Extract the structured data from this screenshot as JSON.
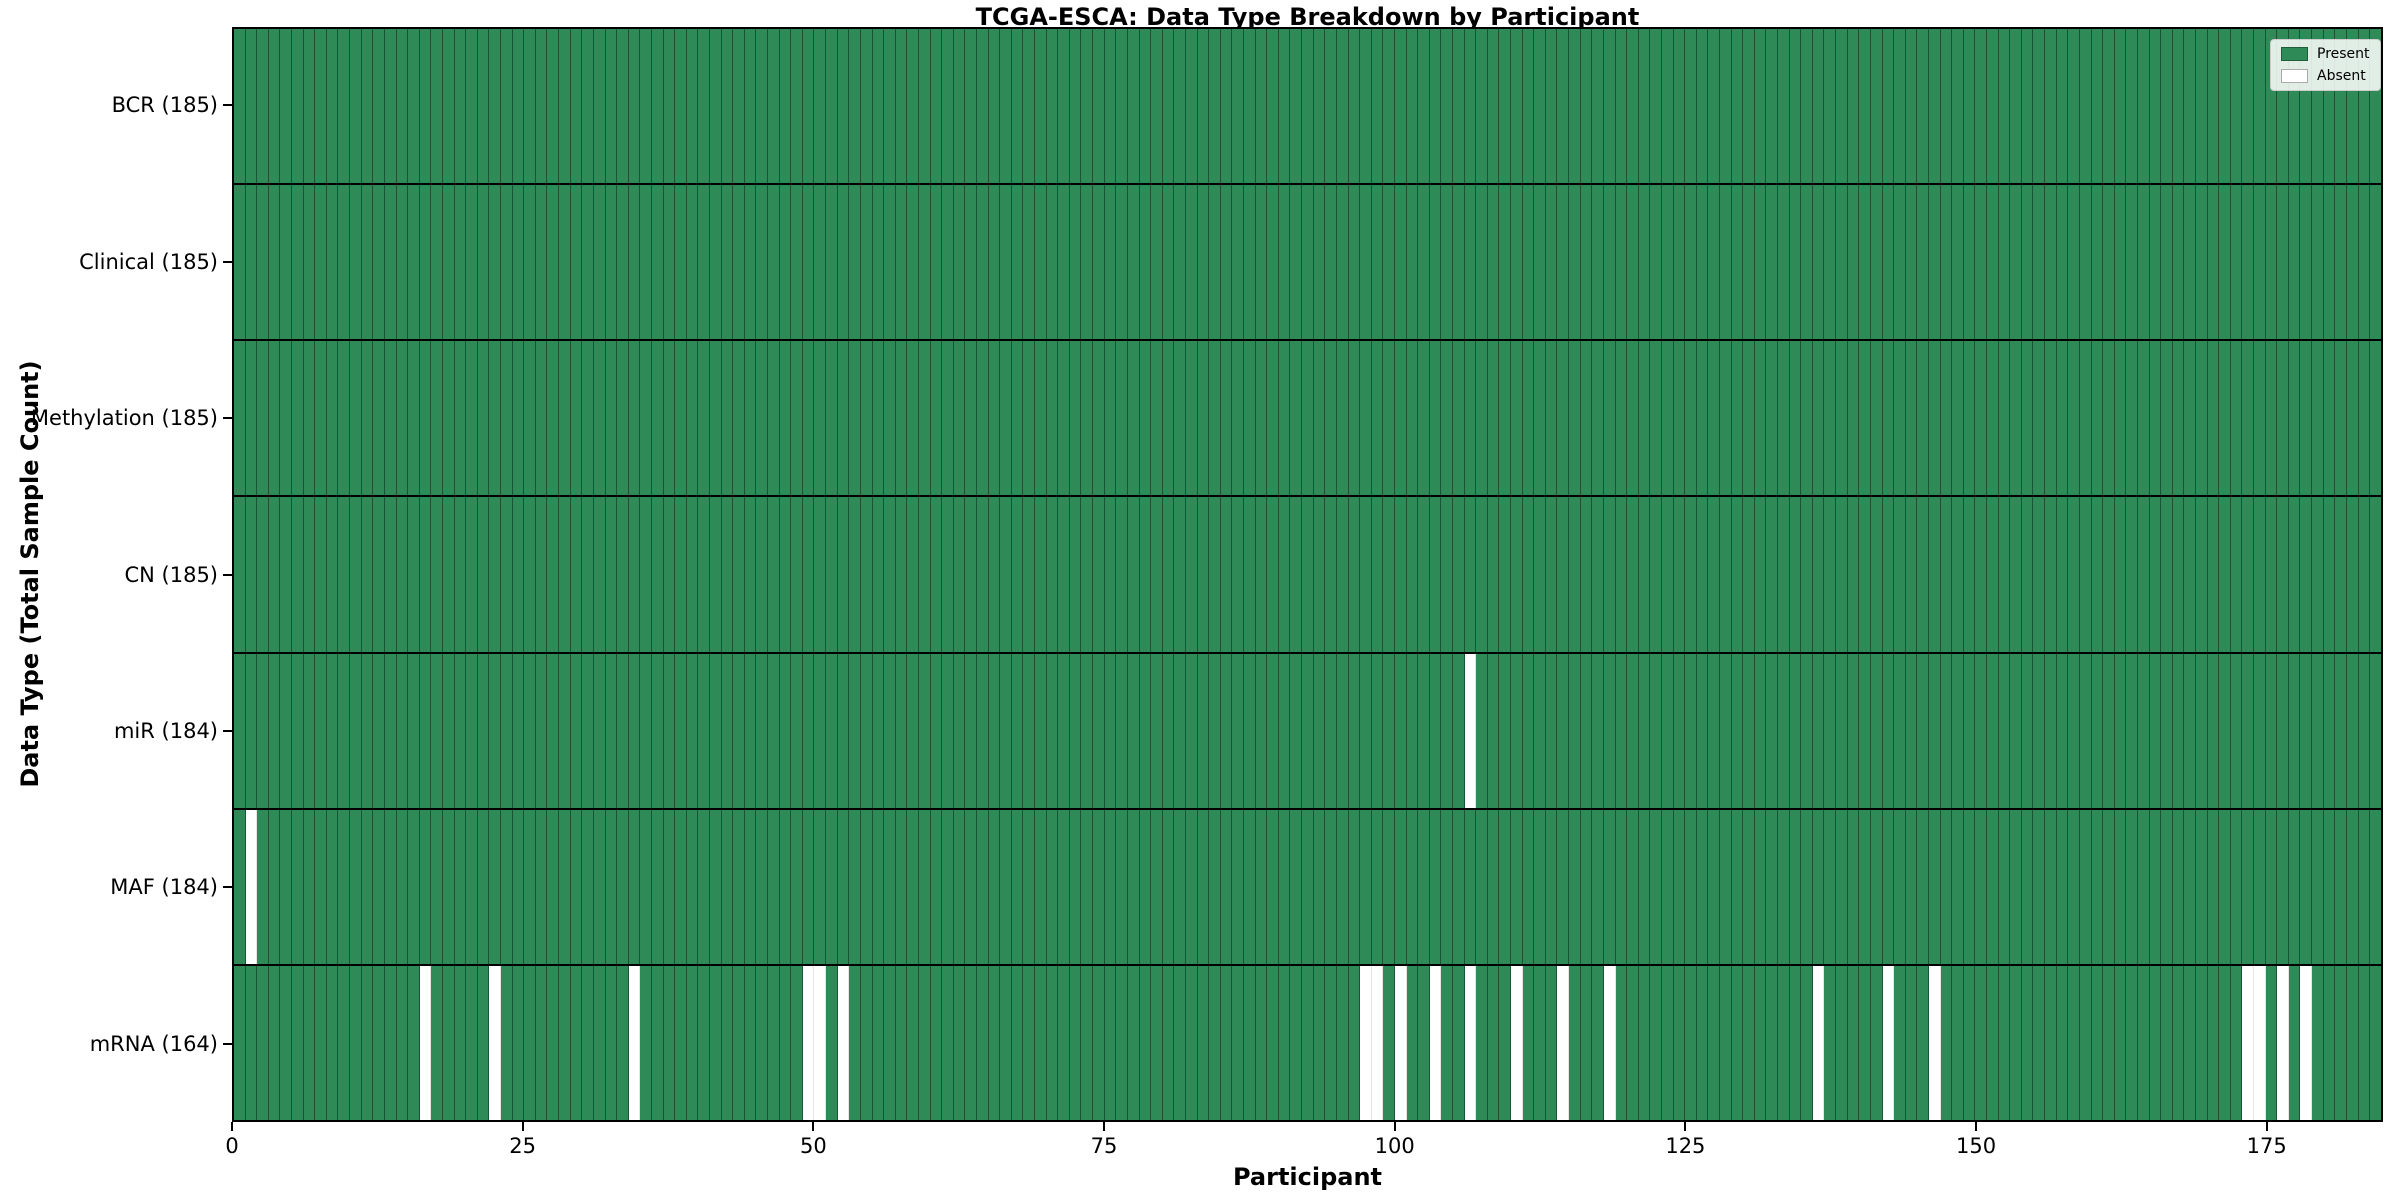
{
  "chart_data": {
    "type": "heatmap",
    "title": "TCGA-ESCA: Data Type Breakdown by Participant",
    "xlabel": "Participant",
    "ylabel": "Data Type (Total Sample Count)",
    "n_participants": 185,
    "x_ticks": [
      0,
      25,
      50,
      75,
      100,
      125,
      150,
      175
    ],
    "colors": {
      "present": "#2e8b57",
      "absent": "#ffffff",
      "cell_edge": "rgba(0,0,0,0.40)",
      "row_divider": "#000000"
    },
    "legend": {
      "position": "upper right",
      "items": [
        {
          "label": "Present",
          "color": "#2e8b57"
        },
        {
          "label": "Absent",
          "color": "#ffffff"
        }
      ]
    },
    "rows": [
      {
        "label": "BCR (185)",
        "count": 185,
        "absent": []
      },
      {
        "label": "Clinical (185)",
        "count": 185,
        "absent": []
      },
      {
        "label": "Methylation (185)",
        "count": 185,
        "absent": []
      },
      {
        "label": "CN (185)",
        "count": 185,
        "absent": []
      },
      {
        "label": "miR (184)",
        "count": 184,
        "absent": [
          106
        ]
      },
      {
        "label": "MAF (184)",
        "count": 184,
        "absent": [
          1
        ]
      },
      {
        "label": "mRNA (164)",
        "count": 164,
        "absent": [
          16,
          22,
          34,
          49,
          50,
          52,
          97,
          98,
          100,
          103,
          106,
          110,
          114,
          118,
          136,
          142,
          146,
          173,
          174,
          176,
          178
        ]
      }
    ]
  }
}
